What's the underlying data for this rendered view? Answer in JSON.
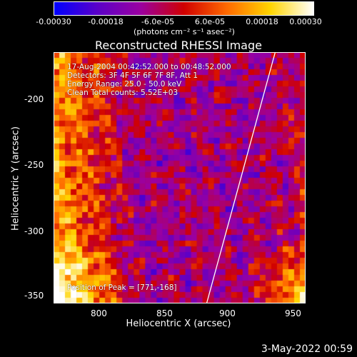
{
  "colorbar": {
    "ticks": [
      "-0.00030",
      "-0.00018",
      "-6.0e-05",
      "6.0e-05",
      "0.00018",
      "0.00030"
    ],
    "units": "(photons cm⁻² s⁻¹ asec⁻²)",
    "range": [
      -0.0003,
      0.0003
    ],
    "colors": [
      "#0000ff",
      "#5a00c8",
      "#9b00a0",
      "#d00000",
      "#ff6a00",
      "#ffd500",
      "#ffffff"
    ]
  },
  "chart_data": {
    "type": "heatmap",
    "title": "Reconstructed RHESSI Image",
    "xlabel": "Heliocentric X (arcsec)",
    "ylabel": "Heliocentric Y (arcsec)",
    "xlim": [
      764,
      955
    ],
    "ylim": [
      -355,
      -164
    ],
    "xticks": [
      "800",
      "850",
      "900",
      "950"
    ],
    "yticks": [
      "-200",
      "-250",
      "-300",
      "-350"
    ],
    "info_lines": [
      "17-Aug-2004 00:42:52.000 to 00:48:52.000",
      "Detectors: 3F 4F 5F 6F 7F 8F, Att 1",
      "Energy Range: 25.0 - 50.0 keV",
      "Clean     Total counts: 5.52E+03"
    ],
    "peak_label": "Position of Peak = [771,-168]",
    "limb_line": {
      "x": [
        880,
        932
      ],
      "y": [
        -355,
        -164
      ]
    }
  },
  "footer": {
    "timestamp": "3-May-2022 00:59"
  }
}
